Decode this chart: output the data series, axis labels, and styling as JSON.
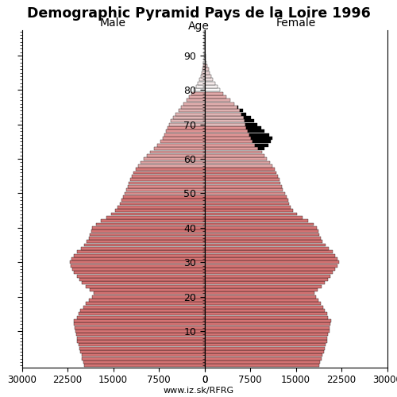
{
  "title": "Demographic Pyramid Pays de la Loire 1996",
  "xlabel_left": "Male",
  "xlabel_right": "Female",
  "ylabel": "Age",
  "watermark": "www.iz.sk/RFRG",
  "xlim": 30000,
  "ages": [
    0,
    1,
    2,
    3,
    4,
    5,
    6,
    7,
    8,
    9,
    10,
    11,
    12,
    13,
    14,
    15,
    16,
    17,
    18,
    19,
    20,
    21,
    22,
    23,
    24,
    25,
    26,
    27,
    28,
    29,
    30,
    31,
    32,
    33,
    34,
    35,
    36,
    37,
    38,
    39,
    40,
    41,
    42,
    43,
    44,
    45,
    46,
    47,
    48,
    49,
    50,
    51,
    52,
    53,
    54,
    55,
    56,
    57,
    58,
    59,
    60,
    61,
    62,
    63,
    64,
    65,
    66,
    67,
    68,
    69,
    70,
    71,
    72,
    73,
    74,
    75,
    76,
    77,
    78,
    79,
    80,
    81,
    82,
    83,
    84,
    85,
    86,
    87,
    88,
    89,
    90,
    91,
    92,
    93,
    94,
    95,
    96,
    97
  ],
  "male": [
    19800,
    19900,
    20100,
    20200,
    20400,
    20600,
    20700,
    20900,
    21000,
    21100,
    21200,
    21300,
    21400,
    21500,
    21000,
    20700,
    20400,
    19900,
    19500,
    19000,
    18500,
    18200,
    18800,
    19500,
    20100,
    20600,
    21000,
    21400,
    21700,
    22000,
    22100,
    21800,
    21400,
    20900,
    20300,
    19800,
    19400,
    19000,
    18800,
    18600,
    18400,
    17800,
    17000,
    16100,
    15300,
    14700,
    14300,
    13900,
    13600,
    13400,
    13100,
    12800,
    12600,
    12400,
    12200,
    12000,
    11700,
    11300,
    10900,
    10500,
    10000,
    9500,
    8900,
    8300,
    7800,
    7300,
    6900,
    6600,
    6300,
    6100,
    5800,
    5500,
    5100,
    4700,
    4300,
    3900,
    3500,
    3000,
    2500,
    2100,
    1700,
    1400,
    1100,
    850,
    650,
    480,
    340,
    230,
    150,
    90,
    55,
    35,
    20,
    12,
    7,
    4,
    2,
    1
  ],
  "female": [
    18900,
    19000,
    19200,
    19400,
    19600,
    19800,
    19900,
    20100,
    20200,
    20300,
    20500,
    20600,
    20700,
    20800,
    20300,
    20100,
    19800,
    19500,
    19100,
    18700,
    18300,
    18000,
    18600,
    19200,
    19800,
    20300,
    20700,
    21100,
    21500,
    21900,
    22100,
    21900,
    21500,
    21000,
    20400,
    19900,
    19400,
    19100,
    18900,
    18700,
    18500,
    17900,
    17000,
    16100,
    15200,
    14600,
    14200,
    13900,
    13700,
    13500,
    13200,
    12900,
    12700,
    12500,
    12300,
    12100,
    11800,
    11500,
    11100,
    10700,
    10300,
    9900,
    9400,
    8800,
    8300,
    7900,
    7600,
    7400,
    7100,
    6900,
    6700,
    6600,
    6400,
    6100,
    5800,
    5400,
    4900,
    4300,
    3600,
    3000,
    2500,
    2100,
    1700,
    1400,
    1100,
    870,
    660,
    480,
    340,
    240,
    155,
    105,
    70,
    47,
    30,
    18,
    10,
    5
  ],
  "female_black": [
    0,
    0,
    0,
    0,
    0,
    0,
    0,
    0,
    0,
    0,
    0,
    0,
    0,
    0,
    0,
    0,
    0,
    0,
    0,
    0,
    0,
    0,
    0,
    0,
    0,
    0,
    0,
    0,
    0,
    0,
    0,
    0,
    0,
    0,
    0,
    0,
    0,
    0,
    0,
    0,
    0,
    0,
    0,
    0,
    0,
    0,
    0,
    0,
    0,
    0,
    0,
    0,
    0,
    0,
    0,
    0,
    0,
    0,
    0,
    0,
    0,
    0,
    0,
    1000,
    2200,
    3000,
    3500,
    3200,
    2800,
    2400,
    2000,
    1600,
    1200,
    800,
    500,
    200,
    0,
    0,
    0,
    0,
    0,
    0,
    0,
    0,
    0,
    0,
    0,
    0,
    0,
    0,
    0,
    0,
    0,
    0,
    0,
    0,
    0,
    0
  ],
  "background_color": "#ffffff"
}
